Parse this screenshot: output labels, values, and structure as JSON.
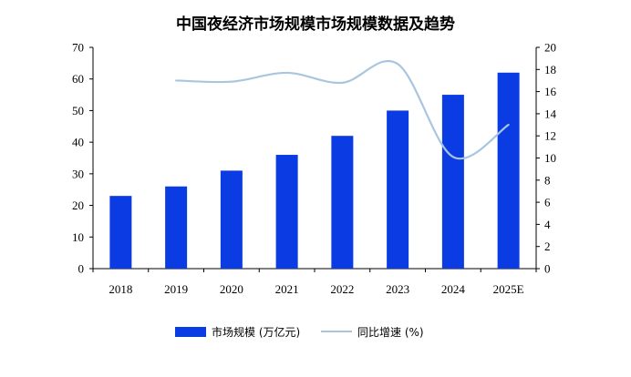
{
  "chart_data": {
    "type": "bar",
    "title": "中国夜经济市场规模市场规模数据及趋势",
    "categories": [
      "2018",
      "2019",
      "2020",
      "2021",
      "2022",
      "2023",
      "2024",
      "2025E"
    ],
    "series": [
      {
        "name": "市场规模 (万亿元)",
        "type": "bar",
        "axis": "left",
        "color": "#0b3be3",
        "values": [
          23,
          26,
          31,
          36,
          42,
          50,
          55,
          62
        ]
      },
      {
        "name": "同比增速 (%)",
        "type": "line",
        "axis": "right",
        "color": "#a9c6e0",
        "values": [
          null,
          17.0,
          16.9,
          17.7,
          16.8,
          18.5,
          10.1,
          13.0
        ]
      }
    ],
    "left_axis": {
      "min": 0,
      "max": 70,
      "step": 10,
      "ticks": [
        "0",
        "10",
        "20",
        "30",
        "40",
        "50",
        "60",
        "70"
      ]
    },
    "right_axis": {
      "min": 0,
      "max": 20,
      "step": 2,
      "ticks": [
        "0",
        "2",
        "4",
        "6",
        "8",
        "10",
        "12",
        "14",
        "16",
        "18",
        "20"
      ]
    },
    "legend_position": "bottom"
  }
}
